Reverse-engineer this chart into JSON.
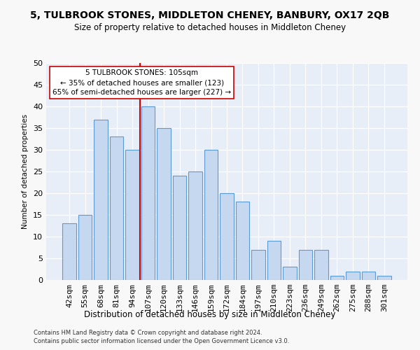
{
  "title": "5, TULBROOK STONES, MIDDLETON CHENEY, BANBURY, OX17 2QB",
  "subtitle": "Size of property relative to detached houses in Middleton Cheney",
  "xlabel": "Distribution of detached houses by size in Middleton Cheney",
  "ylabel": "Number of detached properties",
  "footnote1": "Contains HM Land Registry data © Crown copyright and database right 2024.",
  "footnote2": "Contains public sector information licensed under the Open Government Licence v3.0.",
  "categories": [
    "42sqm",
    "55sqm",
    "68sqm",
    "81sqm",
    "94sqm",
    "107sqm",
    "120sqm",
    "133sqm",
    "146sqm",
    "159sqm",
    "172sqm",
    "184sqm",
    "197sqm",
    "210sqm",
    "223sqm",
    "236sqm",
    "249sqm",
    "262sqm",
    "275sqm",
    "288sqm",
    "301sqm"
  ],
  "values": [
    13,
    15,
    37,
    33,
    30,
    40,
    35,
    24,
    25,
    30,
    20,
    18,
    7,
    9,
    3,
    7,
    7,
    1,
    2,
    2,
    1
  ],
  "bar_color": "#c5d8f0",
  "bar_edge_color": "#5b9bd5",
  "vline_index": 5,
  "vline_color": "#cc0000",
  "annotation_text": "5 TULBROOK STONES: 105sqm\n← 35% of detached houses are smaller (123)\n65% of semi-detached houses are larger (227) →",
  "annotation_box_color": "#ffffff",
  "annotation_box_edge": "#cc0000",
  "ylim": [
    0,
    50
  ],
  "yticks": [
    0,
    5,
    10,
    15,
    20,
    25,
    30,
    35,
    40,
    45,
    50
  ],
  "fig_bg_color": "#f8f8f8",
  "bg_color": "#e8eef7",
  "grid_color": "#ffffff",
  "title_fontsize": 10,
  "subtitle_fontsize": 8.5,
  "bar_width": 0.85
}
